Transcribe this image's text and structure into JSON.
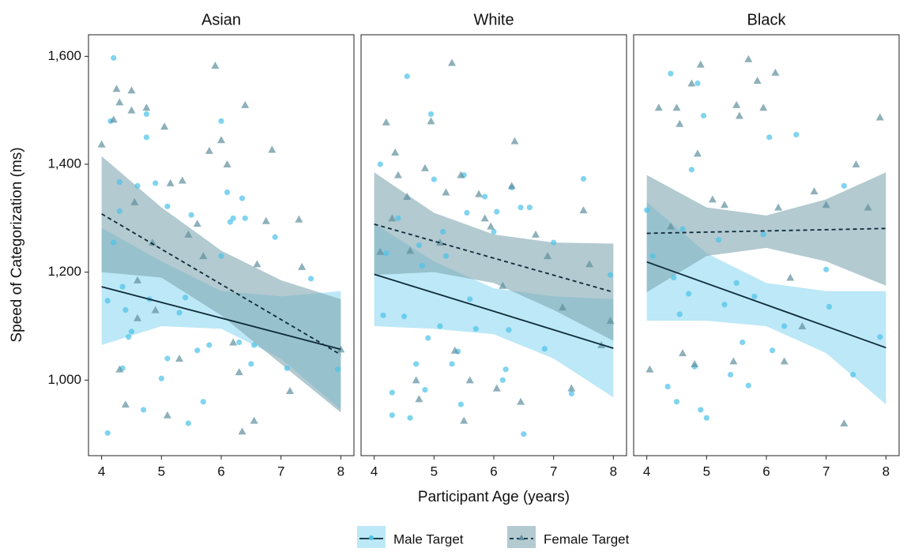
{
  "chart_data": {
    "type": "scatter",
    "xlabel": "Participant Age (years)",
    "ylabel": "Speed of Categorization (ms)",
    "xlim": [
      3.78,
      8.22
    ],
    "xticks": [
      4,
      5,
      6,
      7,
      8
    ],
    "ylim": [
      860,
      1640
    ],
    "yticks": [
      {
        "value": 1000,
        "label": "1,000"
      },
      {
        "value": 1200,
        "label": "1,200"
      },
      {
        "value": 1400,
        "label": "1,400"
      },
      {
        "value": 1600,
        "label": "1,600"
      }
    ],
    "grid": false,
    "legend": "bottom",
    "series": [
      {
        "name": "Male Target",
        "color": "#4cc2e8",
        "band_color": "#8fd8f1",
        "line_color": "#0e2a38",
        "dash": "solid",
        "marker": "circle"
      },
      {
        "name": "Female Target",
        "color": "#5e8e9c",
        "band_color": "#7fa6b1",
        "line_color": "#0e2a38",
        "dash": "dashed",
        "marker": "triangle"
      }
    ],
    "panels": [
      {
        "title": "Asian",
        "series": [
          {
            "x": [
              4.1,
              4.1,
              4.15,
              4.2,
              4.2,
              4.3,
              4.3,
              4.35,
              4.35,
              4.4,
              4.45,
              4.5,
              4.6,
              4.7,
              4.75,
              4.75,
              4.8,
              4.9,
              5.0,
              5.1,
              5.1,
              5.3,
              5.4,
              5.45,
              5.5,
              5.6,
              5.7,
              5.8,
              6.0,
              6.0,
              6.1,
              6.15,
              6.2,
              6.3,
              6.35,
              6.4,
              6.5,
              6.55,
              6.9,
              7.1,
              7.5,
              7.95
            ],
            "values": [
              902,
              1147,
              1480,
              1597,
              1255,
              1367,
              1313,
              1022,
              1173,
              1130,
              1080,
              1090,
              1360,
              945,
              1493,
              1450,
              1150,
              1365,
              1003,
              1322,
              1040,
              1125,
              1153,
              920,
              1306,
              1055,
              960,
              1065,
              1480,
              1230,
              1348,
              1293,
              1300,
              1070,
              1337,
              1300,
              1030,
              1065,
              1265,
              1022,
              1188,
              1020
            ],
            "fit_x": [
              4,
              8
            ],
            "fit": [
              1173,
              1057
            ],
            "band_x": [
              4,
              5,
              6,
              7,
              8
            ],
            "band_lower": [
              1065,
              1100,
              1095,
              1040,
              945
            ],
            "band_upper": [
              1282,
              1220,
              1165,
              1155,
              1165
            ]
          },
          {
            "x": [
              4.0,
              4.2,
              4.25,
              4.3,
              4.3,
              4.4,
              4.5,
              4.5,
              4.55,
              4.6,
              4.6,
              4.75,
              4.85,
              4.9,
              5.05,
              5.1,
              5.15,
              5.3,
              5.35,
              5.45,
              5.6,
              5.7,
              5.8,
              5.9,
              6.0,
              6.1,
              6.2,
              6.3,
              6.35,
              6.4,
              6.55,
              6.6,
              6.75,
              6.85,
              7.15,
              7.3,
              7.35,
              8.0
            ],
            "values": [
              1437,
              1483,
              1540,
              1515,
              1020,
              955,
              1537,
              1500,
              1330,
              1185,
              1115,
              1505,
              1255,
              1130,
              1470,
              935,
              1365,
              1040,
              1370,
              1270,
              1290,
              1230,
              1425,
              1583,
              1445,
              1400,
              1070,
              1015,
              905,
              1510,
              925,
              1215,
              1295,
              1427,
              980,
              1298,
              1210,
              1057
            ],
            "fit_x": [
              4,
              8
            ],
            "fit": [
              1308,
              1047
            ],
            "band_x": [
              4,
              5,
              6,
              7,
              8
            ],
            "band_lower": [
              1200,
              1190,
              1120,
              1030,
              940
            ],
            "band_upper": [
              1415,
              1320,
              1240,
              1185,
              1150
            ]
          }
        ]
      },
      {
        "title": "White",
        "series": [
          {
            "x": [
              4.1,
              4.15,
              4.2,
              4.3,
              4.3,
              4.4,
              4.5,
              4.55,
              4.6,
              4.7,
              4.75,
              4.8,
              4.85,
              4.9,
              4.95,
              5.0,
              5.1,
              5.15,
              5.2,
              5.3,
              5.4,
              5.45,
              5.5,
              5.55,
              5.6,
              5.7,
              5.85,
              6.0,
              6.05,
              6.15,
              6.2,
              6.25,
              6.3,
              6.45,
              6.5,
              6.6,
              6.85,
              7.0,
              7.3,
              7.5,
              7.95
            ],
            "values": [
              1400,
              1120,
              1235,
              935,
              977,
              1300,
              1118,
              1563,
              930,
              1030,
              1250,
              1212,
              982,
              1078,
              1493,
              1372,
              1100,
              1275,
              1230,
              1030,
              1053,
              955,
              1380,
              1310,
              1150,
              1095,
              1340,
              1275,
              1312,
              1000,
              1020,
              1093,
              1357,
              1320,
              900,
              1320,
              1058,
              1255,
              975,
              1373,
              1195
            ],
            "fit_x": [
              4,
              8
            ],
            "fit": [
              1196,
              1059
            ],
            "band_x": [
              4,
              5,
              6,
              7,
              8
            ],
            "band_lower": [
              1100,
              1095,
              1085,
              1040,
              968
            ],
            "band_upper": [
              1290,
              1220,
              1170,
              1155,
              1150
            ]
          },
          {
            "x": [
              4.1,
              4.2,
              4.3,
              4.35,
              4.4,
              4.55,
              4.6,
              4.7,
              4.75,
              4.85,
              4.95,
              5.1,
              5.2,
              5.3,
              5.35,
              5.45,
              5.5,
              5.6,
              5.75,
              5.85,
              5.95,
              6.05,
              6.15,
              6.3,
              6.35,
              6.45,
              6.7,
              6.9,
              7.15,
              7.3,
              7.5,
              7.6,
              7.8,
              7.95
            ],
            "values": [
              1238,
              1478,
              1300,
              1422,
              1380,
              1340,
              1240,
              1000,
              965,
              1393,
              1480,
              1255,
              1348,
              1588,
              1055,
              1380,
              925,
              1000,
              1345,
              1300,
              1285,
              985,
              1175,
              1360,
              1443,
              960,
              1270,
              1230,
              1135,
              985,
              1315,
              1215,
              1065,
              1110
            ],
            "fit_x": [
              4,
              8
            ],
            "fit": [
              1289,
              1163
            ],
            "band_x": [
              4,
              5,
              6,
              7,
              8
            ],
            "band_lower": [
              1195,
              1200,
              1180,
              1130,
              1073
            ],
            "band_upper": [
              1385,
              1310,
              1270,
              1255,
              1253
            ]
          }
        ]
      },
      {
        "title": "Black",
        "series": [
          {
            "x": [
              4.0,
              4.1,
              4.35,
              4.4,
              4.45,
              4.5,
              4.55,
              4.6,
              4.7,
              4.75,
              4.8,
              4.85,
              4.9,
              4.95,
              5.0,
              5.2,
              5.3,
              5.4,
              5.5,
              5.6,
              5.7,
              5.8,
              5.95,
              6.05,
              6.1,
              6.3,
              6.5,
              7.0,
              7.05,
              7.3,
              7.45,
              7.9
            ],
            "values": [
              1315,
              1230,
              988,
              1568,
              1190,
              960,
              1122,
              1280,
              1160,
              1390,
              1025,
              1550,
              945,
              1490,
              930,
              1260,
              1140,
              1010,
              1180,
              1070,
              990,
              1155,
              1270,
              1450,
              1055,
              1100,
              1455,
              1205,
              1136,
              1360,
              1010,
              1080
            ],
            "fit_x": [
              4,
              8
            ],
            "fit": [
              1219,
              1060
            ],
            "band_x": [
              4,
              5,
              6,
              7,
              8
            ],
            "band_lower": [
              1110,
              1110,
              1100,
              1050,
              955
            ],
            "band_upper": [
              1330,
              1235,
              1180,
              1165,
              1165
            ]
          },
          {
            "x": [
              4.05,
              4.2,
              4.4,
              4.5,
              4.55,
              4.6,
              4.75,
              4.8,
              4.85,
              4.9,
              5.1,
              5.3,
              5.45,
              5.5,
              5.55,
              5.7,
              5.85,
              5.95,
              6.15,
              6.2,
              6.3,
              6.4,
              6.6,
              6.8,
              7.0,
              7.3,
              7.5,
              7.7,
              7.9
            ],
            "values": [
              1020,
              1505,
              1285,
              1505,
              1475,
              1050,
              1550,
              1030,
              1420,
              1585,
              1335,
              1325,
              1035,
              1510,
              1490,
              1595,
              1555,
              1505,
              1570,
              1320,
              1035,
              1190,
              1100,
              1350,
              1325,
              920,
              1400,
              1320,
              1487
            ],
            "fit_x": [
              4,
              8
            ],
            "fit": [
              1272,
              1281
            ],
            "band_x": [
              4,
              5,
              6,
              7,
              8
            ],
            "band_lower": [
              1163,
              1230,
              1245,
              1220,
              1175
            ],
            "band_upper": [
              1380,
              1320,
              1305,
              1335,
              1385
            ]
          }
        ]
      }
    ]
  }
}
